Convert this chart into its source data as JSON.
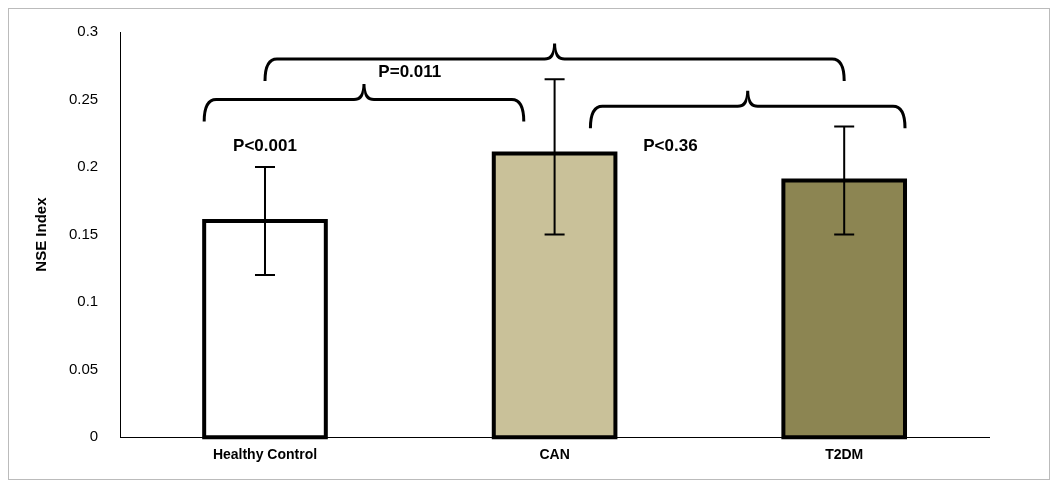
{
  "chart_data": {
    "type": "bar",
    "ylabel": "NSE Index",
    "categories": [
      "Healthy Control",
      "CAN",
      "T2DM"
    ],
    "values": [
      0.16,
      0.21,
      0.19
    ],
    "colors": [
      "#ffffff",
      "#c9c199",
      "#8c8552"
    ],
    "errors": [
      [
        0.12,
        0.2
      ],
      [
        0.15,
        0.265
      ],
      [
        0.15,
        0.23
      ]
    ],
    "ylim": [
      0,
      0.3
    ],
    "yticks": [
      0,
      0.05,
      0.1,
      0.15,
      0.2,
      0.25,
      0.3
    ],
    "annotations": [
      "P<0.001",
      "P=0.011",
      "P<0.36"
    ],
    "grid": false,
    "legend": false
  }
}
